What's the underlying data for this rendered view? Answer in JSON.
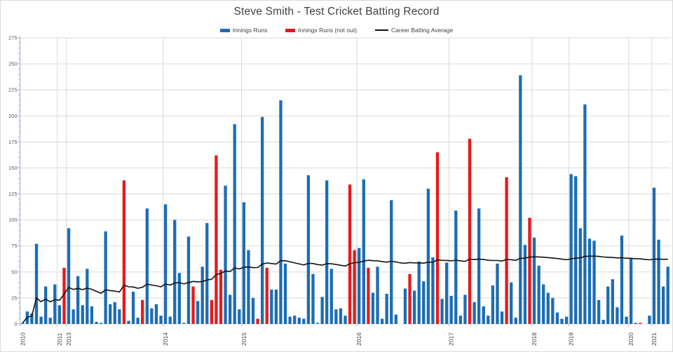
{
  "title": "Steve Smith - Test Cricket Batting Record",
  "legend": {
    "bar_series_label": "Innings Runs",
    "notout_series_label": "Innings Runs (not out)",
    "line_series_label": "Career Batting Average"
  },
  "chart_data": {
    "type": "bar",
    "title": "Steve Smith - Test Cricket Batting Record",
    "xlabel": "",
    "ylabel": "",
    "ylim": [
      0,
      275
    ],
    "y_tick_step": 25,
    "y_minor_tick_step": 5,
    "y_tick_labels": [
      0,
      25,
      50,
      75,
      100,
      125,
      150,
      175,
      200,
      225,
      250,
      275
    ],
    "grid": "horizontal major + vertical year boundaries",
    "legend_position": "top-center",
    "series": [
      {
        "name": "Innings Runs",
        "type": "bar",
        "color": "#1C6DB2"
      },
      {
        "name": "Innings Runs (not out)",
        "type": "bar",
        "color": "#E8191C"
      },
      {
        "name": "Career Batting Average",
        "type": "line",
        "color": "#111111",
        "derivation": "cumulative runs divided by cumulative dismissals (not-out innings excluded from dismissals)"
      }
    ],
    "innings_runs": [
      1,
      12,
      10,
      77,
      7,
      36,
      6,
      38,
      18,
      54,
      92,
      14,
      46,
      18,
      53,
      17,
      2,
      1,
      89,
      19,
      21,
      14,
      138,
      3,
      31,
      6,
      23,
      111,
      15,
      19,
      8,
      115,
      7,
      100,
      49,
      1,
      84,
      36,
      22,
      55,
      97,
      23,
      162,
      52,
      133,
      28,
      192,
      14,
      117,
      71,
      25,
      5,
      199,
      54,
      33,
      33,
      215,
      58,
      7,
      8,
      6,
      5,
      143,
      48,
      1,
      26,
      138,
      53,
      14,
      15,
      8,
      134,
      71,
      73,
      139,
      54,
      30,
      55,
      5,
      29,
      119,
      9,
      0,
      34,
      48,
      32,
      60,
      41,
      130,
      64,
      165,
      24,
      59,
      27,
      109,
      8,
      28,
      178,
      21,
      111,
      17,
      8,
      37,
      58,
      12,
      141,
      40,
      6,
      239,
      76,
      102,
      83,
      56,
      38,
      30,
      25,
      11,
      5,
      7,
      144,
      142,
      92,
      211,
      82,
      80,
      23,
      4,
      36,
      43,
      16,
      85,
      7,
      63,
      1,
      1,
      0,
      8,
      131,
      81,
      36,
      55
    ],
    "not_out_indices": [
      9,
      22,
      26,
      37,
      41,
      42,
      43,
      51,
      53,
      71,
      72,
      75,
      84,
      90,
      97,
      105,
      110,
      134
    ],
    "year_ticks": [
      {
        "label": "2010",
        "index": 0
      },
      {
        "label": "2011",
        "index": 8
      },
      {
        "label": "2013",
        "index": 10
      },
      {
        "label": "2014",
        "index": 31
      },
      {
        "label": "2015",
        "index": 48
      },
      {
        "label": "2016",
        "index": 73
      },
      {
        "label": "2017",
        "index": 93
      },
      {
        "label": "2018",
        "index": 111
      },
      {
        "label": "2019",
        "index": 119
      },
      {
        "label": "2020",
        "index": 132
      },
      {
        "label": "2021",
        "index": 137
      }
    ],
    "colors": {
      "bar_blue": "#1C6DB2",
      "bar_red": "#E8191C",
      "avg_line": "#111111",
      "gridline": "#D9D9D9",
      "y_axis": "#9AA6D4",
      "tick_label": "#595959",
      "year_label": "#404040"
    }
  }
}
